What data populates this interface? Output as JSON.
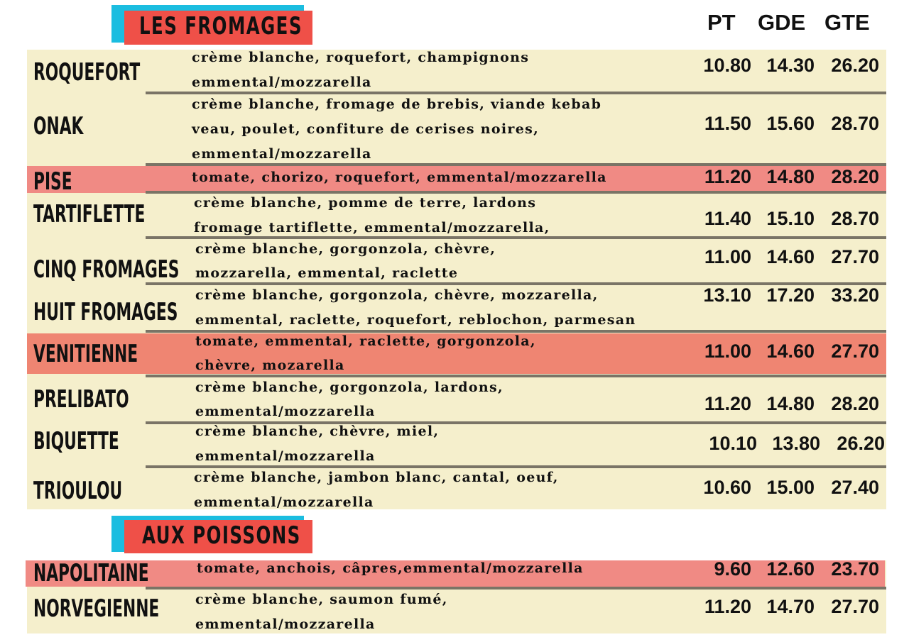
{
  "sections": [
    {
      "title": "LES FROMAGES"
    },
    {
      "title": "AUX POISSONS"
    }
  ],
  "columns": [
    "PT",
    "GDE",
    "GTE"
  ],
  "colors": {
    "cream": "#f5efcc",
    "pink": "#f08a84",
    "salmon": "#ef8572",
    "header_red": "#ef5048",
    "header_cyan": "#1bbde0",
    "divider": "#7a7466"
  },
  "items": [
    {
      "name": "ROQUEFORT",
      "desc": [
        "crème blanche, roquefort, champignons",
        "emmental/mozzarella"
      ],
      "prices": [
        "10.80",
        "14.30",
        "26.20"
      ]
    },
    {
      "name": "ONAK",
      "desc": [
        "crème blanche, fromage de brebis, viande kebab",
        "veau, poulet, confiture de cerises noires,",
        "emmental/mozzarella"
      ],
      "prices": [
        "11.50",
        "15.60",
        "28.70"
      ]
    },
    {
      "name": "PISE",
      "desc": [
        "tomate, chorizo, roquefort, emmental/mozzarella"
      ],
      "prices": [
        "11.20",
        "14.80",
        "28.20"
      ]
    },
    {
      "name": "TARTIFLETTE",
      "desc": [
        "crème blanche, pomme de terre, lardons",
        "fromage tartiflette, emmental/mozzarella,"
      ],
      "prices": [
        "11.40",
        "15.10",
        "28.70"
      ]
    },
    {
      "name": "CINQ FROMAGES",
      "desc": [
        "crème blanche, gorgonzola, chèvre,",
        "mozzarella, emmental, raclette"
      ],
      "prices": [
        "11.00",
        "14.60",
        "27.70"
      ]
    },
    {
      "name": "HUIT FROMAGES",
      "desc": [
        "crème blanche, gorgonzola, chèvre, mozzarella,",
        "emmental, raclette, roquefort, reblochon, parmesan"
      ],
      "prices": [
        "13.10",
        "17.20",
        "33.20"
      ]
    },
    {
      "name": "VENITIENNE",
      "desc": [
        "tomate, emmental, raclette, gorgonzola,",
        "chèvre, mozarella"
      ],
      "prices": [
        "11.00",
        "14.60",
        "27.70"
      ]
    },
    {
      "name": "PRELIBATO",
      "desc": [
        "crème blanche, gorgonzola, lardons,",
        "emmental/mozzarella"
      ],
      "prices": [
        "11.20",
        "14.80",
        "28.20"
      ]
    },
    {
      "name": "BIQUETTE",
      "desc": [
        "crème blanche, chèvre, miel,",
        "emmental/mozzarella"
      ],
      "prices": [
        "10.10",
        "13.80",
        "26.20"
      ]
    },
    {
      "name": "TRIOULOU",
      "desc": [
        "crème blanche, jambon blanc, cantal, oeuf,",
        "emmental/mozzarella"
      ],
      "prices": [
        "10.60",
        "15.00",
        "27.40"
      ]
    },
    {
      "name": "NAPOLITAINE",
      "desc": [
        "tomate, anchois, câpres,emmental/mozzarella"
      ],
      "prices": [
        "9.60",
        "12.60",
        "23.70"
      ]
    },
    {
      "name": "NORVEGIENNE",
      "desc": [
        "crème blanche, saumon fumé,",
        "emmental/mozzarella"
      ],
      "prices": [
        "11.20",
        "14.70",
        "27.70"
      ]
    }
  ]
}
